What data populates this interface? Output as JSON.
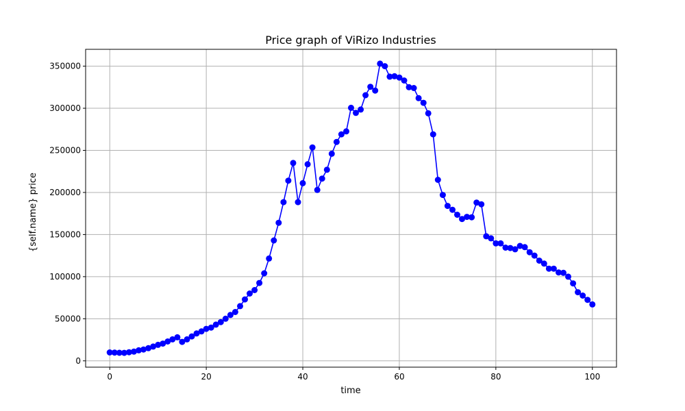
{
  "chart_data": {
    "type": "line",
    "title": "Price graph of ViRizo Industries",
    "xlabel": "time",
    "ylabel": "{self.name} price",
    "xlim": [
      -5,
      105
    ],
    "ylim": [
      -7500,
      370000
    ],
    "xticks": [
      0,
      20,
      40,
      60,
      80,
      100
    ],
    "yticks": [
      0,
      50000,
      100000,
      150000,
      200000,
      250000,
      300000,
      350000
    ],
    "grid": true,
    "color": "#0000ff",
    "series": [
      {
        "x": [
          0,
          1,
          2,
          3,
          4,
          5,
          6,
          7,
          8,
          9,
          10,
          11,
          12,
          13,
          14,
          15,
          16,
          17,
          18,
          19,
          20,
          21,
          22,
          23,
          24,
          25,
          26,
          27,
          28,
          29,
          30,
          31,
          32,
          33,
          34,
          35,
          36,
          37,
          38,
          39,
          40,
          41,
          42,
          43,
          44,
          45,
          46,
          47,
          48,
          49,
          50,
          51,
          52,
          53,
          54,
          55,
          56,
          57,
          58,
          59,
          60,
          61,
          62,
          63,
          64,
          65,
          66,
          67,
          68,
          69,
          70,
          71,
          72,
          73,
          74,
          75,
          76,
          77,
          78,
          79,
          80,
          81,
          82,
          83,
          84,
          85,
          86,
          87,
          88,
          89,
          90,
          91,
          92,
          93,
          94,
          95,
          96,
          97,
          98,
          99,
          100
        ],
        "values": [
          10000,
          9800,
          9600,
          9500,
          10200,
          11000,
          12500,
          13500,
          15000,
          17000,
          19000,
          20500,
          23000,
          25500,
          28000,
          22500,
          25500,
          29000,
          32500,
          35000,
          38000,
          39500,
          43000,
          46000,
          50000,
          54500,
          58000,
          65000,
          73000,
          80000,
          84000,
          92500,
          104000,
          121500,
          143000,
          164000,
          188500,
          214000,
          235000,
          188500,
          211000,
          233500,
          253500,
          203000,
          216500,
          227000,
          246000,
          260000,
          269000,
          272500,
          300500,
          294500,
          298500,
          315500,
          325500,
          321000,
          353000,
          350000,
          337500,
          338000,
          336500,
          333000,
          325000,
          324000,
          312000,
          306500,
          294000,
          269000,
          215000,
          197000,
          184000,
          179500,
          173500,
          168500,
          171000,
          170500,
          188000,
          186000,
          148000,
          145500,
          139500,
          139500,
          134500,
          134000,
          132500,
          136500,
          135000,
          129000,
          125000,
          119000,
          115500,
          109500,
          109500,
          105000,
          104500,
          100000,
          92000,
          81500,
          77500,
          72500,
          67000
        ]
      }
    ]
  }
}
